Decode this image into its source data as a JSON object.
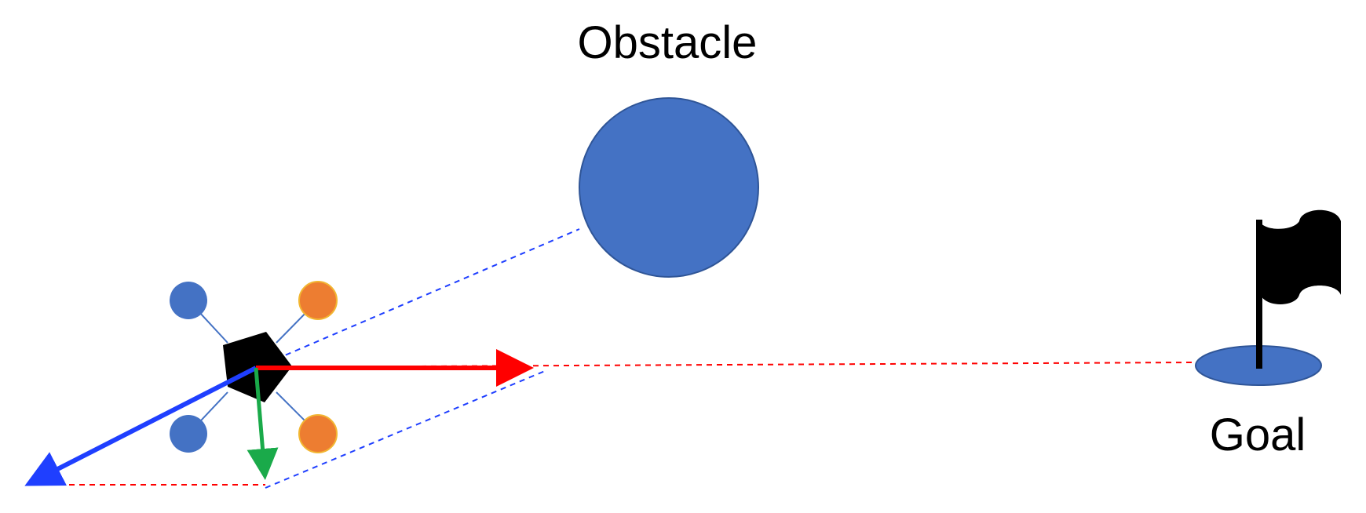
{
  "labels": {
    "obstacle": "Obstacle",
    "goal": "Goal"
  },
  "colors": {
    "obstacle_fill": "#4472C4",
    "obstacle_stroke": "#2F5597",
    "rotor_blue": "#4472C4",
    "rotor_orange": "#ED7D31",
    "body": "#000000",
    "attraction_vector": "#FF0000",
    "repulsion_vector": "#1F3FFF",
    "resultant_vector": "#1AAA4A",
    "guide_red": "#FF0000",
    "guide_blue": "#1F3FFF",
    "goal_pad": "#4472C4",
    "flag": "#000000"
  },
  "elements": {
    "drone": "quadrotor-icon",
    "flag": "flag-icon",
    "obstacle": "circle-obstacle",
    "goal": "goal-pad"
  }
}
